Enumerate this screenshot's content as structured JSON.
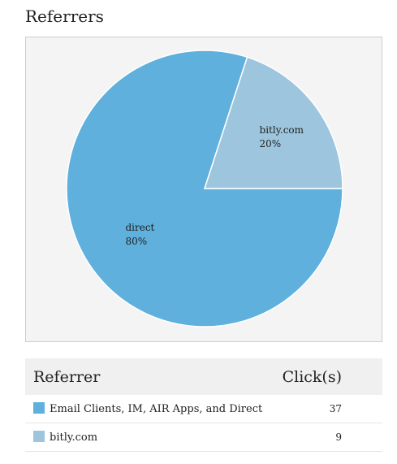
{
  "page_title": "Referrers",
  "chart_data": {
    "type": "pie",
    "categories": [
      "direct",
      "bitly.com"
    ],
    "values": [
      80,
      20
    ],
    "value_labels": [
      "80%",
      "20%"
    ],
    "colors": [
      "#5fb0dc",
      "#9dc6de"
    ]
  },
  "table": {
    "header": [
      "Referrer",
      "Click(s)"
    ],
    "rows": [
      [
        "Email Clients, IM, AIR Apps, and Direct",
        37
      ],
      [
        "bitly.com",
        9
      ]
    ],
    "swatch_colors": [
      "#5fb0dc",
      "#9dc6de"
    ]
  }
}
